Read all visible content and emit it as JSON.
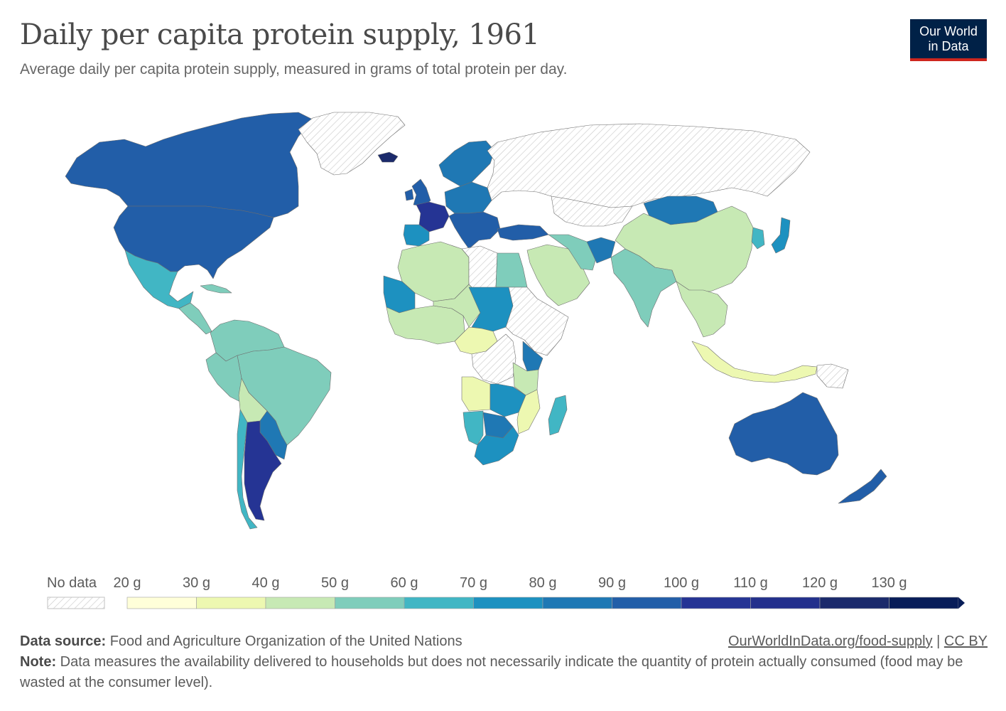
{
  "title": "Daily per capita protein supply, 1961",
  "subtitle": "Average daily per capita protein supply, measured in grams of total protein per day.",
  "logo": {
    "line1": "Our World",
    "line2": "in Data",
    "bg_color": "#002147",
    "accent_color": "#ce261e"
  },
  "legend": {
    "no_data_label": "No data",
    "ticks": [
      "20 g",
      "30 g",
      "40 g",
      "50 g",
      "60 g",
      "70 g",
      "80 g",
      "90 g",
      "100 g",
      "110 g",
      "120 g",
      "130 g"
    ],
    "colors": [
      "#ffffd9",
      "#edf8b1",
      "#c7e9b4",
      "#7fcdbb",
      "#41b6c4",
      "#1d91c0",
      "#1f78b4",
      "#225ea8",
      "#253494",
      "#23308c",
      "#1b2a6b",
      "#081d58"
    ]
  },
  "footer": {
    "source_label": "Data source:",
    "source_text": "Food and Agriculture Organization of the United Nations",
    "link_text": "OurWorldInData.org/food-supply",
    "separator": "|",
    "license": "CC BY",
    "note_label": "Note:",
    "note_text": "Data measures the availability delivered to households but does not necessarily indicate the quantity of protein actually consumed (food may be wasted at the consumer level)."
  },
  "map_regions": [
    {
      "name": "canada",
      "value": 90
    },
    {
      "name": "united-states",
      "value": 95
    },
    {
      "name": "greenland",
      "value": null
    },
    {
      "name": "iceland",
      "value": 125
    },
    {
      "name": "mexico",
      "value": 65
    },
    {
      "name": "central-america",
      "value": 55
    },
    {
      "name": "cuba",
      "value": 50
    },
    {
      "name": "colombia-venezuela",
      "value": 50
    },
    {
      "name": "brazil",
      "value": 55
    },
    {
      "name": "peru",
      "value": 50
    },
    {
      "name": "bolivia",
      "value": 45
    },
    {
      "name": "chile",
      "value": 65
    },
    {
      "name": "argentina",
      "value": 100
    },
    {
      "name": "paraguay-uruguay",
      "value": 85
    },
    {
      "name": "united-kingdom",
      "value": 90
    },
    {
      "name": "ireland",
      "value": 95
    },
    {
      "name": "france",
      "value": 105
    },
    {
      "name": "spain-portugal",
      "value": 75
    },
    {
      "name": "scandinavia",
      "value": 85
    },
    {
      "name": "central-europe",
      "value": 85
    },
    {
      "name": "italy-balkans",
      "value": 90
    },
    {
      "name": "turkey",
      "value": 90
    },
    {
      "name": "russia",
      "value": null
    },
    {
      "name": "north-africa",
      "value": 45
    },
    {
      "name": "libya",
      "value": null
    },
    {
      "name": "egypt",
      "value": 55
    },
    {
      "name": "mauritania",
      "value": 75
    },
    {
      "name": "west-africa",
      "value": 45
    },
    {
      "name": "chad-sahel",
      "value": 45
    },
    {
      "name": "sudan",
      "value": 75
    },
    {
      "name": "ethiopia-somalia",
      "value": null
    },
    {
      "name": "central-africa",
      "value": 35
    },
    {
      "name": "drc",
      "value": null
    },
    {
      "name": "kenya",
      "value": 80
    },
    {
      "name": "tanzania",
      "value": 45
    },
    {
      "name": "angola",
      "value": 35
    },
    {
      "name": "zambia-zimbabwe",
      "value": 70
    },
    {
      "name": "mozambique",
      "value": 35
    },
    {
      "name": "namibia",
      "value": 65
    },
    {
      "name": "botswana",
      "value": 80
    },
    {
      "name": "south-africa",
      "value": 75
    },
    {
      "name": "madagascar",
      "value": 65
    },
    {
      "name": "arabia",
      "value": 45
    },
    {
      "name": "iran",
      "value": 55
    },
    {
      "name": "afghanistan",
      "value": 80
    },
    {
      "name": "india",
      "value": 55
    },
    {
      "name": "kazakhstan",
      "value": null
    },
    {
      "name": "mongolia",
      "value": 80
    },
    {
      "name": "china",
      "value": 40
    },
    {
      "name": "korea",
      "value": 65
    },
    {
      "name": "japan",
      "value": 75
    },
    {
      "name": "southeast-asia",
      "value": 40
    },
    {
      "name": "indonesia",
      "value": 35
    },
    {
      "name": "papua",
      "value": null
    },
    {
      "name": "australia",
      "value": 95
    },
    {
      "name": "new-zealand",
      "value": 90
    }
  ]
}
